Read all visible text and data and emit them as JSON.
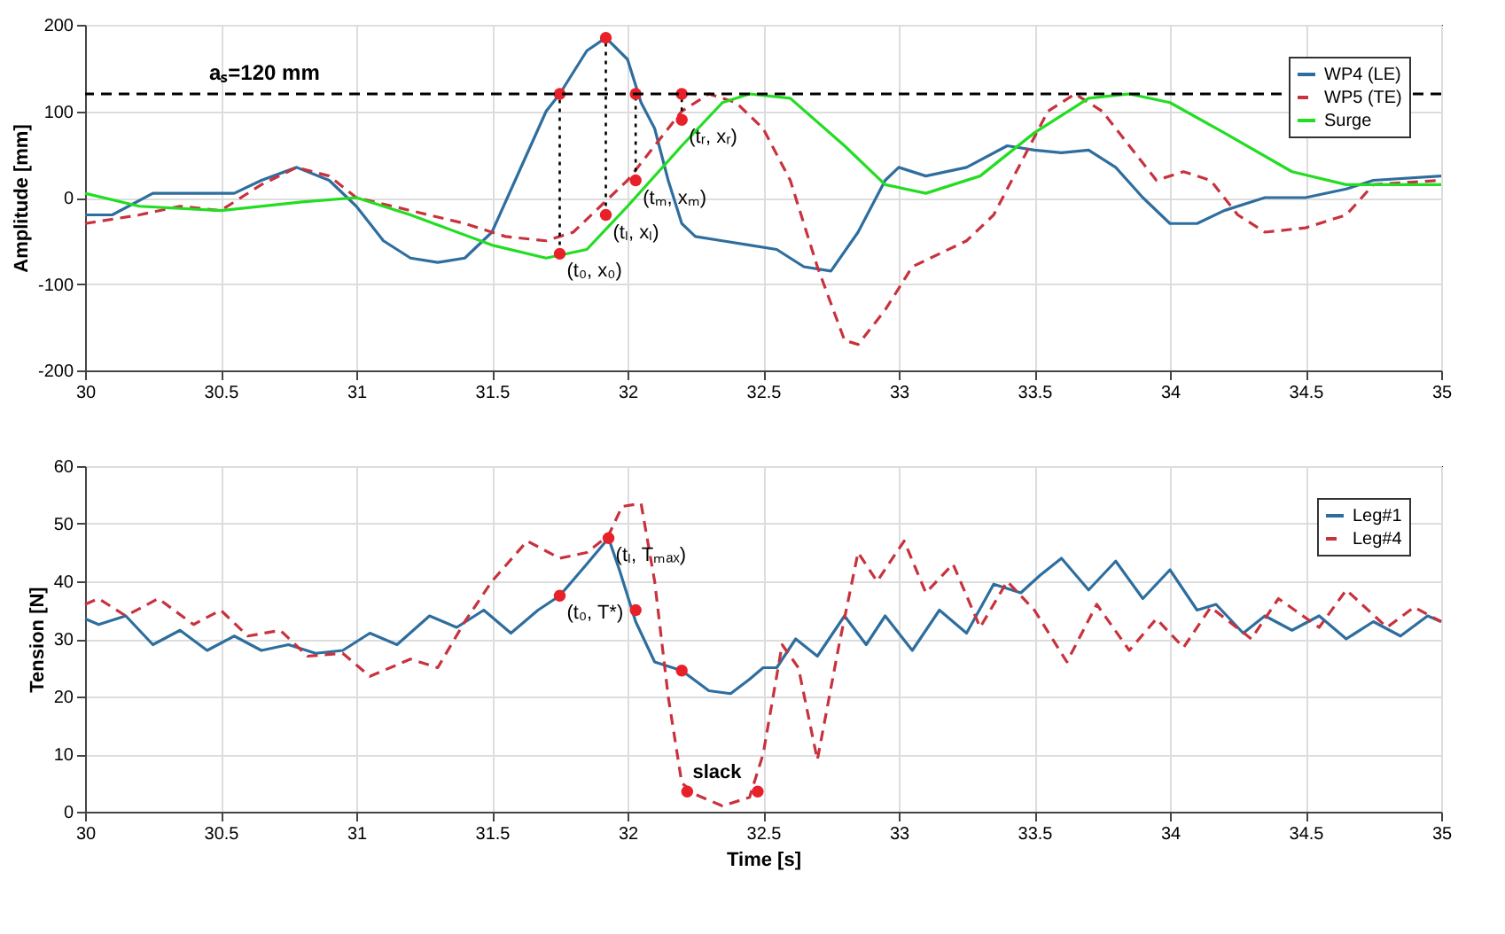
{
  "chart_data": [
    {
      "type": "line",
      "ylabel": "Amplitude [mm]",
      "xlim": [
        30,
        35
      ],
      "xticks": [
        30,
        30.5,
        31,
        31.5,
        32,
        32.5,
        33,
        33.5,
        34,
        34.5,
        35
      ],
      "ylim": [
        -200,
        200
      ],
      "yticks": [
        -200,
        -100,
        0,
        100,
        200
      ],
      "grid": true,
      "legend": "top right",
      "ref_lines": [
        {
          "axis": "y",
          "value": 120,
          "label": "aₛ=120 mm",
          "color": "#000000",
          "line_style": "dashed"
        }
      ],
      "annotations": [
        {
          "text": "(t₀, x₀)",
          "x": 31.75,
          "y": -65
        },
        {
          "text": "(tₗ, xₗ)",
          "x": 31.92,
          "y": -20
        },
        {
          "text": "(tₘ, xₘ)",
          "x": 32.03,
          "y": 20
        },
        {
          "text": "(tᵣ, xᵣ)",
          "x": 32.2,
          "y": 90
        }
      ],
      "series": [
        {
          "name": "WP4 (LE)",
          "color": "#2e6e9e",
          "line_style": "solid",
          "x": [
            30,
            30.1,
            30.25,
            30.4,
            30.55,
            30.65,
            30.78,
            30.9,
            31.0,
            31.1,
            31.2,
            31.3,
            31.4,
            31.5,
            31.6,
            31.7,
            31.75,
            31.85,
            31.92,
            32.0,
            32.05,
            32.1,
            32.15,
            32.2,
            32.25,
            32.35,
            32.45,
            32.55,
            32.65,
            32.75,
            32.85,
            32.95,
            33.0,
            33.1,
            33.25,
            33.4,
            33.5,
            33.6,
            33.7,
            33.8,
            33.9,
            34.0,
            34.1,
            34.2,
            34.35,
            34.5,
            34.65,
            34.75,
            35
          ],
          "values": [
            -20,
            -20,
            5,
            5,
            5,
            20,
            35,
            20,
            -10,
            -50,
            -70,
            -75,
            -70,
            -40,
            30,
            100,
            120,
            170,
            185,
            160,
            110,
            80,
            20,
            -30,
            -45,
            -50,
            -55,
            -60,
            -80,
            -85,
            -40,
            20,
            35,
            25,
            35,
            60,
            55,
            52,
            55,
            35,
            0,
            -30,
            -30,
            -15,
            0,
            0,
            10,
            20,
            25
          ]
        },
        {
          "name": "WP5 (TE)",
          "color": "#c8323c",
          "line_style": "dashed",
          "x": [
            30,
            30.2,
            30.35,
            30.5,
            30.65,
            30.78,
            30.9,
            31.0,
            31.2,
            31.4,
            31.55,
            31.7,
            31.8,
            31.9,
            32.0,
            32.1,
            32.2,
            32.3,
            32.4,
            32.5,
            32.6,
            32.7,
            32.8,
            32.85,
            32.95,
            33.05,
            33.15,
            33.25,
            33.35,
            33.45,
            33.55,
            33.65,
            33.75,
            33.85,
            33.95,
            34.05,
            34.15,
            34.25,
            34.35,
            34.5,
            34.65,
            34.75,
            35
          ],
          "values": [
            -30,
            -20,
            -10,
            -15,
            15,
            35,
            25,
            0,
            -15,
            -30,
            -45,
            -50,
            -40,
            -10,
            20,
            60,
            100,
            120,
            110,
            80,
            20,
            -80,
            -165,
            -170,
            -130,
            -80,
            -65,
            -50,
            -20,
            40,
            100,
            120,
            100,
            60,
            20,
            30,
            20,
            -20,
            -40,
            -35,
            -20,
            15,
            20
          ]
        },
        {
          "name": "Surge",
          "color": "#22dd22",
          "line_style": "solid",
          "x": [
            30,
            30.2,
            30.5,
            30.8,
            31.0,
            31.2,
            31.5,
            31.7,
            31.85,
            32.0,
            32.2,
            32.35,
            32.45,
            32.6,
            32.8,
            32.95,
            33.1,
            33.3,
            33.5,
            33.7,
            33.85,
            34.0,
            34.2,
            34.45,
            34.65,
            35
          ],
          "values": [
            5,
            -10,
            -15,
            -5,
            0,
            -20,
            -55,
            -70,
            -60,
            -10,
            60,
            110,
            120,
            115,
            60,
            15,
            5,
            25,
            75,
            115,
            120,
            110,
            75,
            30,
            15,
            15
          ]
        },
        {
          "type": "line",
          "color": "#000000",
          "line_style": "dotted",
          "x": [
            31.75,
            31.75
          ],
          "values": [
            -65,
            120
          ]
        },
        {
          "type": "line",
          "color": "#000000",
          "line_style": "dotted",
          "x": [
            31.92,
            31.92
          ],
          "values": [
            -20,
            185
          ]
        },
        {
          "type": "line",
          "color": "#000000",
          "line_style": "dotted",
          "x": [
            32.03,
            32.03
          ],
          "values": [
            20,
            120
          ]
        },
        {
          "type": "line",
          "color": "#000000",
          "line_style": "dotted",
          "x": [
            32.2,
            32.2
          ],
          "values": [
            90,
            120
          ]
        },
        {
          "type": "scatter",
          "color": "#e8202a",
          "marker": "circle",
          "x": [
            31.75,
            31.75,
            31.92,
            31.92,
            32.03,
            32.03,
            32.2,
            32.2
          ],
          "values": [
            -65,
            120,
            185,
            -20,
            120,
            20,
            120,
            90
          ]
        }
      ]
    },
    {
      "type": "line",
      "xlabel": "Time [s]",
      "ylabel": "Tension [N]",
      "xlim": [
        30,
        35
      ],
      "xticks": [
        30,
        30.5,
        31,
        31.5,
        32,
        32.5,
        33,
        33.5,
        34,
        34.5,
        35
      ],
      "ylim": [
        0,
        60
      ],
      "yticks": [
        0,
        10,
        20,
        30,
        40,
        50,
        60
      ],
      "grid": true,
      "legend": "top right",
      "annotations": [
        {
          "text": "(tₗ, Tₘₐₓ)",
          "x": 31.93,
          "y": 47.5
        },
        {
          "text": "(t₀, T*)",
          "x": 31.75,
          "y": 37.5
        },
        {
          "text": "slack",
          "x": 32.33,
          "y": 1
        }
      ],
      "series": [
        {
          "name": "Leg#1",
          "color": "#2e6e9e",
          "line_style": "solid",
          "x": [
            30,
            30.05,
            30.15,
            30.25,
            30.35,
            30.45,
            30.55,
            30.65,
            30.75,
            30.85,
            30.95,
            31.05,
            31.15,
            31.27,
            31.37,
            31.47,
            31.57,
            31.67,
            31.75,
            31.85,
            31.93,
            31.97,
            32.03,
            32.1,
            32.2,
            32.3,
            32.38,
            32.45,
            32.5,
            32.55,
            32.62,
            32.7,
            32.8,
            32.88,
            32.95,
            33.05,
            33.15,
            33.25,
            33.35,
            33.45,
            33.52,
            33.6,
            33.7,
            33.8,
            33.9,
            34.0,
            34.1,
            34.17,
            34.27,
            34.35,
            34.45,
            34.55,
            34.65,
            34.75,
            34.85,
            34.95,
            35
          ],
          "values": [
            33.5,
            32.5,
            34,
            29,
            31.5,
            28,
            30.5,
            28,
            29,
            27.5,
            28,
            31,
            29,
            34,
            32,
            35,
            31,
            35,
            37.5,
            43,
            47.5,
            42,
            33,
            26,
            24.5,
            21,
            20.5,
            23,
            25,
            25,
            30,
            27,
            34,
            29,
            34,
            28,
            35,
            31,
            39.5,
            38,
            41,
            44,
            38.5,
            43.5,
            37,
            42,
            35,
            36,
            31,
            34,
            31.5,
            34,
            30,
            33,
            30.5,
            34,
            33
          ]
        },
        {
          "name": "Leg#4",
          "color": "#c8323c",
          "line_style": "dashed",
          "x": [
            30,
            30.05,
            30.15,
            30.27,
            30.4,
            30.5,
            30.6,
            30.72,
            30.82,
            30.95,
            31.05,
            31.2,
            31.3,
            31.4,
            31.5,
            31.63,
            31.75,
            31.85,
            31.93,
            31.98,
            32.05,
            32.1,
            32.15,
            32.2,
            32.25,
            32.35,
            32.45,
            32.5,
            32.57,
            32.63,
            32.7,
            32.78,
            32.85,
            32.92,
            33.02,
            33.1,
            33.2,
            33.3,
            33.4,
            33.5,
            33.62,
            33.73,
            33.85,
            33.95,
            34.05,
            34.15,
            34.3,
            34.4,
            34.55,
            34.65,
            34.8,
            34.9,
            35
          ],
          "values": [
            36,
            37,
            34,
            37,
            32.5,
            35,
            30.5,
            31.5,
            27,
            27.5,
            23.5,
            26.5,
            25,
            33,
            40,
            47,
            44,
            45,
            48,
            53,
            53.5,
            40,
            20,
            5,
            3,
            1,
            2.5,
            10,
            29,
            25,
            9,
            29,
            45,
            40,
            47,
            38,
            43,
            32,
            40,
            35,
            26,
            36,
            28,
            33.5,
            28.5,
            35.5,
            30,
            37,
            32,
            38.5,
            32,
            35.5,
            33
          ]
        },
        {
          "type": "scatter",
          "color": "#e8202a",
          "marker": "circle",
          "x": [
            31.75,
            31.93,
            32.03,
            32.2,
            32.22,
            32.48
          ],
          "values": [
            37.5,
            47.5,
            35,
            24.5,
            3.5,
            3.5
          ]
        }
      ]
    }
  ]
}
